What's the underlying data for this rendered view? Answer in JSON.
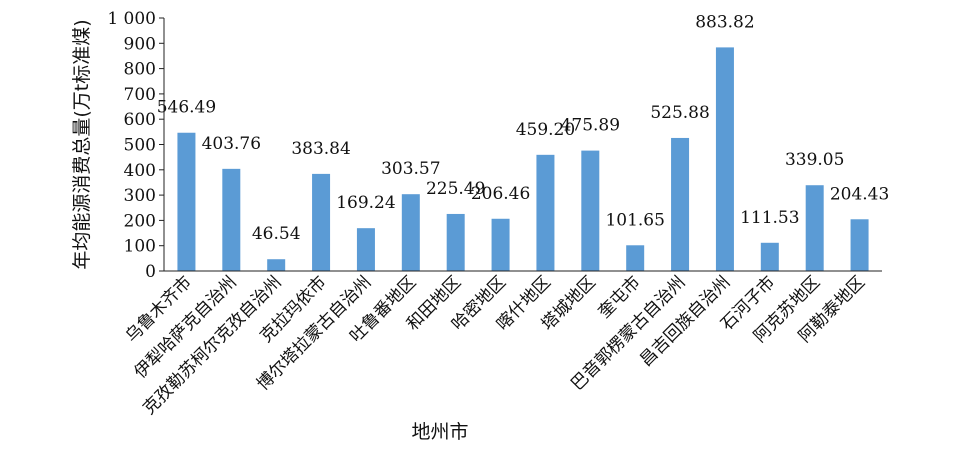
{
  "chart_data": {
    "type": "bar",
    "title": "",
    "xlabel": "地州市",
    "ylabel": "年均能源消费总量(万t标准煤)",
    "ylim": [
      0,
      1000
    ],
    "yticks": [
      0,
      100,
      200,
      300,
      400,
      500,
      600,
      700,
      800,
      900,
      1000
    ],
    "ytick_labels": [
      "0",
      "100",
      "200",
      "300",
      "400",
      "500",
      "600",
      "700",
      "800",
      "900",
      "1 000"
    ],
    "grid": false,
    "bar_color": "#5b9bd5",
    "categories": [
      "乌鲁木齐市",
      "伊犁哈萨克自治州",
      "克孜勒苏柯尔克孜自治州",
      "克拉玛依市",
      "博尔塔拉蒙古自治州",
      "吐鲁番地区",
      "和田地区",
      "哈密地区",
      "喀什地区",
      "塔城地区",
      "奎屯市",
      "巴音郭楞蒙古自治州",
      "昌吉回族自治州",
      "石河子市",
      "阿克苏地区",
      "阿勒泰地区"
    ],
    "values": [
      546.49,
      403.76,
      46.54,
      383.84,
      169.24,
      303.57,
      225.49,
      206.46,
      459.2,
      475.89,
      101.65,
      525.88,
      883.82,
      111.53,
      339.05,
      204.43
    ],
    "value_labels": [
      "546.49",
      "403.76",
      "46.54",
      "383.84",
      "169.24",
      "303.57",
      "225.49",
      "206.46",
      "459.20",
      "475.89",
      "101.65",
      "525.88",
      "883.82",
      "111.53",
      "339.05",
      "204.43"
    ]
  }
}
